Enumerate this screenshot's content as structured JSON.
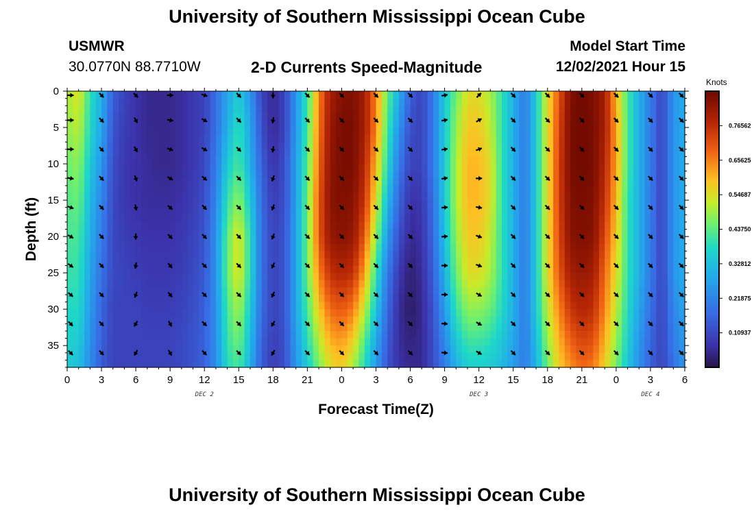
{
  "header": {
    "title": "University of Southern Mississippi Ocean Cube",
    "station_id": "USMWR",
    "coordinates": "30.0770N  88.7710W",
    "plot_title": "2-D Currents Speed-Magnitude",
    "model_start_label": "Model Start Time",
    "model_start_value": "12/02/2021 Hour 15"
  },
  "footer": {
    "title": "University of Southern Mississippi Ocean Cube"
  },
  "chart_data": {
    "type": "heatmap",
    "title": "2-D Currents Speed-Magnitude",
    "xlabel": "Forecast Time(Z)",
    "ylabel": "Depth (ft)",
    "x_range_hours": [
      0,
      54
    ],
    "y_range_ft": [
      0,
      38
    ],
    "y_inverted": true,
    "x_tick_labels": [
      "0",
      "3",
      "6",
      "9",
      "12",
      "15",
      "18",
      "21",
      "0",
      "3",
      "6",
      "9",
      "12",
      "15",
      "18",
      "21",
      "0",
      "3",
      "6"
    ],
    "y_ticks": [
      0,
      5,
      10,
      15,
      20,
      25,
      30,
      35
    ],
    "day_labels": [
      {
        "label": "DEC 2",
        "hour": 12
      },
      {
        "label": "DEC 3",
        "hour": 36
      },
      {
        "label": "DEC 4",
        "hour": 51
      }
    ],
    "colorbar": {
      "title": "Knots",
      "range": [
        0,
        0.875
      ],
      "ticks": [
        0.10937,
        0.21875,
        0.32812,
        0.4375,
        0.54687,
        0.65625,
        0.76562
      ],
      "tick_labels": [
        "0.10937",
        "0.21875",
        "0.32812",
        "0.43750",
        "0.54687",
        "0.65625",
        "0.76562"
      ]
    },
    "speed_grid": {
      "hours": [
        0,
        1,
        2,
        3,
        4,
        5,
        6,
        7,
        8,
        9,
        10,
        11,
        12,
        13,
        14,
        15,
        16,
        17,
        18,
        19,
        20,
        21,
        22,
        23,
        24,
        25,
        26,
        27,
        28,
        29,
        30,
        31,
        32,
        33,
        34,
        35,
        36,
        37,
        38,
        39,
        40,
        41,
        42,
        43,
        44,
        45,
        46,
        47,
        48,
        49,
        50,
        51,
        52,
        53,
        54
      ],
      "depths_ft": [
        0,
        5,
        10,
        15,
        20,
        25,
        30,
        35,
        38
      ],
      "values_knots": [
        [
          0.5,
          0.55,
          0.4,
          0.3,
          0.15,
          0.1,
          0.07,
          0.05,
          0.05,
          0.05,
          0.06,
          0.08,
          0.1,
          0.18,
          0.28,
          0.35,
          0.25,
          0.1,
          0.05,
          0.1,
          0.25,
          0.4,
          0.65,
          0.8,
          0.84,
          0.85,
          0.8,
          0.65,
          0.45,
          0.3,
          0.15,
          0.1,
          0.2,
          0.35,
          0.45,
          0.55,
          0.55,
          0.5,
          0.4,
          0.3,
          0.2,
          0.35,
          0.55,
          0.7,
          0.85,
          0.87,
          0.85,
          0.8,
          0.6,
          0.42,
          0.3,
          0.2,
          0.1,
          0.25,
          0.3
        ],
        [
          0.48,
          0.52,
          0.38,
          0.28,
          0.13,
          0.09,
          0.07,
          0.05,
          0.05,
          0.05,
          0.06,
          0.08,
          0.1,
          0.18,
          0.3,
          0.4,
          0.28,
          0.12,
          0.05,
          0.1,
          0.25,
          0.42,
          0.66,
          0.82,
          0.86,
          0.86,
          0.8,
          0.65,
          0.42,
          0.25,
          0.12,
          0.1,
          0.2,
          0.35,
          0.48,
          0.58,
          0.58,
          0.52,
          0.4,
          0.3,
          0.2,
          0.35,
          0.55,
          0.72,
          0.86,
          0.87,
          0.86,
          0.8,
          0.62,
          0.42,
          0.3,
          0.2,
          0.1,
          0.25,
          0.3
        ],
        [
          0.45,
          0.48,
          0.35,
          0.25,
          0.12,
          0.08,
          0.07,
          0.06,
          0.05,
          0.05,
          0.06,
          0.08,
          0.11,
          0.2,
          0.35,
          0.42,
          0.3,
          0.15,
          0.07,
          0.12,
          0.27,
          0.43,
          0.68,
          0.83,
          0.86,
          0.86,
          0.78,
          0.6,
          0.38,
          0.2,
          0.1,
          0.1,
          0.2,
          0.35,
          0.5,
          0.6,
          0.6,
          0.55,
          0.4,
          0.3,
          0.2,
          0.35,
          0.55,
          0.73,
          0.86,
          0.87,
          0.86,
          0.78,
          0.62,
          0.42,
          0.3,
          0.2,
          0.1,
          0.25,
          0.3
        ],
        [
          0.43,
          0.45,
          0.32,
          0.22,
          0.11,
          0.08,
          0.07,
          0.06,
          0.06,
          0.06,
          0.07,
          0.09,
          0.12,
          0.22,
          0.4,
          0.48,
          0.35,
          0.17,
          0.09,
          0.12,
          0.27,
          0.45,
          0.7,
          0.84,
          0.85,
          0.84,
          0.75,
          0.55,
          0.32,
          0.16,
          0.07,
          0.08,
          0.18,
          0.35,
          0.5,
          0.6,
          0.6,
          0.55,
          0.4,
          0.3,
          0.2,
          0.35,
          0.55,
          0.73,
          0.85,
          0.86,
          0.85,
          0.76,
          0.6,
          0.4,
          0.3,
          0.2,
          0.1,
          0.25,
          0.3
        ],
        [
          0.42,
          0.42,
          0.3,
          0.2,
          0.11,
          0.09,
          0.08,
          0.07,
          0.07,
          0.07,
          0.08,
          0.1,
          0.13,
          0.24,
          0.44,
          0.55,
          0.38,
          0.18,
          0.1,
          0.13,
          0.28,
          0.45,
          0.7,
          0.82,
          0.84,
          0.82,
          0.7,
          0.48,
          0.26,
          0.12,
          0.05,
          0.07,
          0.17,
          0.33,
          0.48,
          0.58,
          0.58,
          0.52,
          0.4,
          0.3,
          0.2,
          0.35,
          0.55,
          0.72,
          0.84,
          0.85,
          0.84,
          0.72,
          0.58,
          0.4,
          0.3,
          0.2,
          0.1,
          0.25,
          0.3
        ],
        [
          0.4,
          0.4,
          0.28,
          0.18,
          0.11,
          0.1,
          0.09,
          0.08,
          0.08,
          0.08,
          0.09,
          0.11,
          0.14,
          0.24,
          0.45,
          0.55,
          0.38,
          0.18,
          0.1,
          0.13,
          0.28,
          0.45,
          0.65,
          0.76,
          0.78,
          0.76,
          0.62,
          0.4,
          0.2,
          0.08,
          0.03,
          0.06,
          0.15,
          0.3,
          0.45,
          0.55,
          0.55,
          0.5,
          0.4,
          0.3,
          0.2,
          0.35,
          0.55,
          0.7,
          0.8,
          0.82,
          0.8,
          0.68,
          0.55,
          0.4,
          0.3,
          0.2,
          0.1,
          0.25,
          0.3
        ],
        [
          0.38,
          0.38,
          0.26,
          0.16,
          0.1,
          0.1,
          0.1,
          0.09,
          0.09,
          0.09,
          0.1,
          0.12,
          0.15,
          0.24,
          0.42,
          0.5,
          0.35,
          0.17,
          0.1,
          0.13,
          0.28,
          0.42,
          0.58,
          0.68,
          0.7,
          0.66,
          0.52,
          0.34,
          0.17,
          0.06,
          0.02,
          0.05,
          0.13,
          0.26,
          0.4,
          0.48,
          0.48,
          0.45,
          0.38,
          0.3,
          0.2,
          0.35,
          0.52,
          0.65,
          0.75,
          0.78,
          0.76,
          0.65,
          0.52,
          0.38,
          0.28,
          0.18,
          0.1,
          0.22,
          0.28
        ],
        [
          0.36,
          0.35,
          0.24,
          0.15,
          0.1,
          0.1,
          0.1,
          0.1,
          0.1,
          0.1,
          0.11,
          0.13,
          0.15,
          0.24,
          0.4,
          0.45,
          0.32,
          0.15,
          0.09,
          0.12,
          0.26,
          0.38,
          0.5,
          0.6,
          0.62,
          0.56,
          0.42,
          0.28,
          0.14,
          0.06,
          0.04,
          0.05,
          0.12,
          0.22,
          0.34,
          0.4,
          0.4,
          0.38,
          0.34,
          0.28,
          0.2,
          0.32,
          0.48,
          0.6,
          0.68,
          0.72,
          0.7,
          0.6,
          0.48,
          0.36,
          0.25,
          0.16,
          0.1,
          0.2,
          0.26
        ],
        [
          0.35,
          0.33,
          0.23,
          0.14,
          0.1,
          0.1,
          0.1,
          0.1,
          0.1,
          0.1,
          0.11,
          0.13,
          0.15,
          0.24,
          0.38,
          0.42,
          0.3,
          0.14,
          0.09,
          0.12,
          0.25,
          0.35,
          0.46,
          0.55,
          0.58,
          0.5,
          0.38,
          0.26,
          0.13,
          0.07,
          0.05,
          0.05,
          0.12,
          0.2,
          0.3,
          0.36,
          0.36,
          0.35,
          0.32,
          0.26,
          0.2,
          0.3,
          0.45,
          0.57,
          0.64,
          0.68,
          0.66,
          0.57,
          0.46,
          0.34,
          0.24,
          0.15,
          0.1,
          0.18,
          0.25
        ]
      ]
    },
    "vector_rows_ft": [
      0,
      4,
      8,
      12,
      16,
      20,
      24,
      28,
      32,
      36
    ],
    "vector_hours": [
      0,
      3,
      6,
      9,
      12,
      15,
      18,
      21,
      24,
      27,
      30,
      33,
      36,
      39,
      42,
      45,
      48,
      51,
      54
    ],
    "vector_directions_deg": [
      [
        90,
        135,
        135,
        90,
        110,
        135,
        180,
        135,
        135,
        135,
        135,
        80,
        45,
        135,
        135,
        135,
        135,
        135,
        135
      ],
      [
        90,
        135,
        150,
        100,
        120,
        135,
        190,
        135,
        135,
        135,
        135,
        80,
        60,
        135,
        135,
        135,
        135,
        135,
        135
      ],
      [
        90,
        135,
        150,
        110,
        120,
        135,
        190,
        135,
        135,
        135,
        135,
        80,
        70,
        135,
        135,
        135,
        135,
        135,
        135
      ],
      [
        100,
        135,
        160,
        120,
        130,
        135,
        200,
        135,
        135,
        135,
        135,
        80,
        90,
        135,
        135,
        135,
        135,
        135,
        135
      ],
      [
        110,
        135,
        170,
        130,
        135,
        135,
        200,
        135,
        135,
        135,
        135,
        85,
        100,
        135,
        135,
        135,
        135,
        135,
        135
      ],
      [
        120,
        135,
        180,
        135,
        135,
        135,
        200,
        135,
        135,
        135,
        135,
        85,
        110,
        135,
        135,
        135,
        135,
        135,
        135
      ],
      [
        125,
        135,
        190,
        140,
        135,
        135,
        205,
        135,
        135,
        135,
        135,
        90,
        110,
        135,
        135,
        135,
        135,
        135,
        135
      ],
      [
        130,
        135,
        200,
        140,
        135,
        135,
        205,
        135,
        135,
        135,
        135,
        90,
        120,
        135,
        135,
        135,
        135,
        135,
        135
      ],
      [
        135,
        135,
        210,
        150,
        135,
        135,
        210,
        135,
        135,
        135,
        135,
        95,
        120,
        135,
        135,
        135,
        135,
        135,
        135
      ],
      [
        135,
        135,
        210,
        150,
        135,
        135,
        210,
        135,
        135,
        135,
        135,
        95,
        120,
        135,
        135,
        135,
        135,
        135,
        135
      ]
    ]
  }
}
